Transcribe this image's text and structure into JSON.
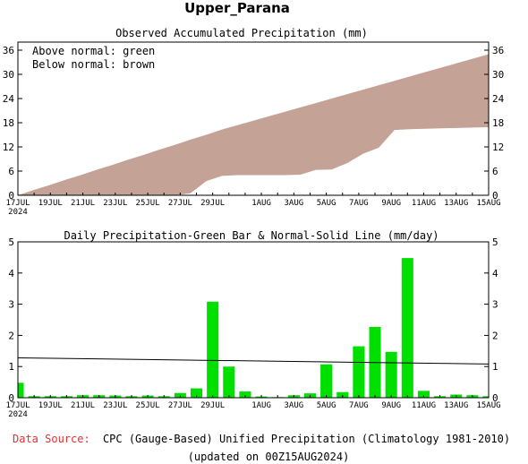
{
  "title": "Upper_Parana",
  "footer": {
    "source_label": "Data Source:",
    "source_text": "CPC (Gauge-Based) Unified Precipitation (Climatology 1981-2010)",
    "updated": "(updated on 00Z15AUG2024)"
  },
  "colors": {
    "normal_fill": "#c4a295",
    "observed_fill": "#ffffff",
    "bar": "#00e000",
    "source_label": "#e03030"
  },
  "chart_data": [
    {
      "type": "area",
      "title": "Observed Accumulated Precipitation (mm)",
      "legend": [
        "Above normal: green",
        "Below normal: brown"
      ],
      "legend_position": "top-left",
      "xlabels": [
        {
          "day": 0,
          "label": "17JUL",
          "sub": "2024"
        },
        {
          "day": 2,
          "label": "19JUL"
        },
        {
          "day": 4,
          "label": "21JUL"
        },
        {
          "day": 6,
          "label": "23JUL"
        },
        {
          "day": 8,
          "label": "25JUL"
        },
        {
          "day": 10,
          "label": "27JUL"
        },
        {
          "day": 12,
          "label": "29JUL"
        },
        {
          "day": 15,
          "label": "1AUG"
        },
        {
          "day": 17,
          "label": "3AUG"
        },
        {
          "day": 19,
          "label": "5AUG"
        },
        {
          "day": 21,
          "label": "7AUG"
        },
        {
          "day": 23,
          "label": "9AUG"
        },
        {
          "day": 25,
          "label": "11AUG"
        },
        {
          "day": 27,
          "label": "13AUG"
        },
        {
          "day": 29,
          "label": "15AUG"
        }
      ],
      "xlim": [
        0,
        29
      ],
      "ylim": [
        0,
        38
      ],
      "yticks": [
        0,
        6,
        12,
        18,
        24,
        30,
        36
      ],
      "normal": [
        0.0,
        1.3,
        2.5,
        3.8,
        5.0,
        6.3,
        7.5,
        8.8,
        10.0,
        11.3,
        12.5,
        13.8,
        15.0,
        16.3,
        17.4,
        18.5,
        19.6,
        20.7,
        21.8,
        22.9,
        24.0,
        25.1,
        26.2,
        27.3,
        28.4,
        29.5,
        30.6,
        31.7,
        32.8,
        33.9,
        35.0
      ],
      "observed": [
        0.0,
        0.0,
        0.0,
        0.0,
        0.0,
        0.0,
        0.0,
        0.0,
        0.0,
        0.0,
        0.0,
        0.5,
        3.5,
        4.8,
        5.0,
        5.0,
        5.0,
        5.0,
        5.1,
        6.3,
        6.4,
        8.0,
        10.3,
        11.8,
        16.2,
        16.4,
        16.5,
        16.6,
        16.7,
        16.8,
        16.9
      ]
    },
    {
      "type": "bar",
      "title": "Daily Precipitation-Green Bar & Normal-Solid Line (mm/day)",
      "xlabels": [
        {
          "day": 0,
          "label": "17JUL",
          "sub": "2024"
        },
        {
          "day": 2,
          "label": "19JUL"
        },
        {
          "day": 4,
          "label": "21JUL"
        },
        {
          "day": 6,
          "label": "23JUL"
        },
        {
          "day": 8,
          "label": "25JUL"
        },
        {
          "day": 10,
          "label": "27JUL"
        },
        {
          "day": 12,
          "label": "29JUL"
        },
        {
          "day": 15,
          "label": "1AUG"
        },
        {
          "day": 17,
          "label": "3AUG"
        },
        {
          "day": 19,
          "label": "5AUG"
        },
        {
          "day": 21,
          "label": "7AUG"
        },
        {
          "day": 23,
          "label": "9AUG"
        },
        {
          "day": 25,
          "label": "11AUG"
        },
        {
          "day": 27,
          "label": "13AUG"
        },
        {
          "day": 29,
          "label": "15AUG"
        }
      ],
      "xlim": [
        0,
        29
      ],
      "ylim": [
        0,
        5
      ],
      "yticks": [
        0,
        1,
        2,
        3,
        4,
        5
      ],
      "values": [
        0.48,
        0.05,
        0.05,
        0.05,
        0.08,
        0.08,
        0.07,
        0.05,
        0.07,
        0.05,
        0.15,
        0.3,
        3.08,
        1.0,
        0.2,
        0.04,
        0.02,
        0.08,
        0.14,
        1.07,
        0.18,
        1.65,
        2.27,
        1.47,
        4.48,
        0.22,
        0.05,
        0.1,
        0.08,
        0.05
      ],
      "normal_line": {
        "x": [
          0,
          29
        ],
        "y": [
          1.28,
          1.08
        ]
      }
    }
  ]
}
